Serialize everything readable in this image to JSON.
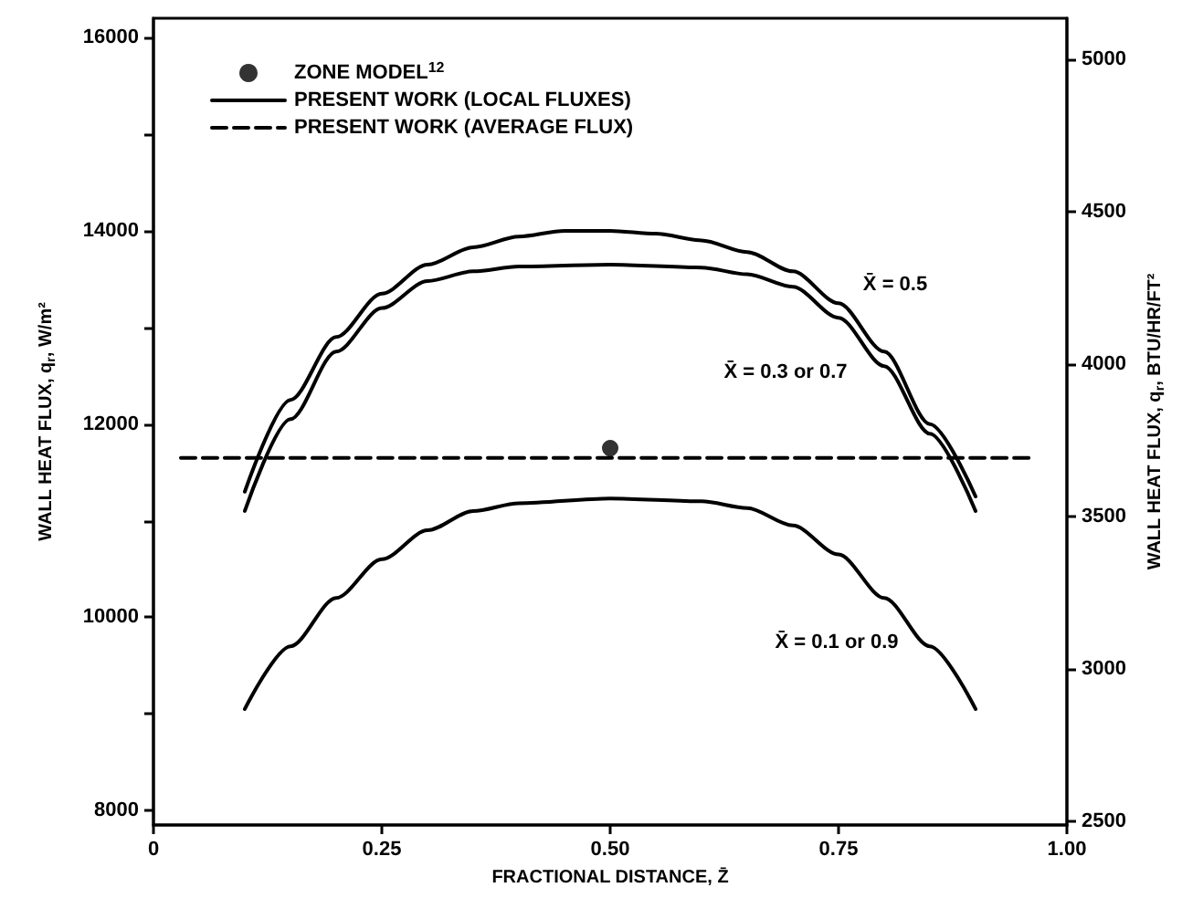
{
  "chart_data": {
    "type": "line",
    "xlabel": "FRACTIONAL DISTANCE, Z̄",
    "ylabel": "WALL HEAT FLUX, q$_{r}$, W/m²",
    "y2label": "WALL HEAT FLUX, q$_{r}$, BTU/HR/FT²",
    "xlim": [
      0,
      1
    ],
    "xticks": [
      0,
      {
        "value": 0.25,
        "label": "0.25"
      },
      {
        "value": 0.5,
        "label": "0.50"
      },
      {
        "value": 0.75,
        "label": "0.75"
      },
      {
        "value": 1,
        "label": "1.00"
      }
    ],
    "ylim": [
      7850,
      16200
    ],
    "yticks": [
      8000,
      {
        "value": 9000,
        "label": null
      },
      10000,
      {
        "value": 11000,
        "label": null
      },
      12000,
      {
        "value": 13000,
        "label": null
      },
      14000,
      {
        "value": 15000,
        "label": null
      },
      16000
    ],
    "y2lim": [
      2488,
      5135
    ],
    "y2ticks": [
      2500,
      3000,
      3500,
      4000,
      4500,
      5000
    ],
    "legend": "top left",
    "grid": false,
    "marker": "none",
    "line_style": "solid",
    "series": [
      {
        "name": "ZONE MODEL$^{12}$",
        "type": "scatter",
        "marker": "circle",
        "color": "#000000",
        "x": [
          0.5
        ],
        "values": [
          11750
        ]
      },
      {
        "name": "PRESENT WORK (LOCAL FLUXES)",
        "color": "#000000",
        "x": [
          0.1,
          0.15,
          0.2,
          0.25,
          0.3,
          0.35,
          0.4,
          0.45,
          0.5,
          0.55,
          0.6,
          0.65,
          0.7,
          0.75,
          0.8,
          0.85,
          0.9
        ],
        "values": [
          11300,
          12250,
          12900,
          13350,
          13650,
          13830,
          13940,
          14000,
          14000,
          13970,
          13900,
          13780,
          13580,
          13250,
          12750,
          12000,
          11250
        ]
      },
      {
        "color": "#000000",
        "x": [
          0.1,
          0.15,
          0.2,
          0.25,
          0.3,
          0.35,
          0.4,
          0.5,
          0.6,
          0.65,
          0.7,
          0.75,
          0.8,
          0.85,
          0.9
        ],
        "values": [
          11100,
          12050,
          12750,
          13200,
          13480,
          13580,
          13630,
          13650,
          13620,
          13550,
          13420,
          13100,
          12600,
          11900,
          11100
        ]
      },
      {
        "color": "#000000",
        "x": [
          0.1,
          0.15,
          0.2,
          0.25,
          0.3,
          0.35,
          0.4,
          0.5,
          0.6,
          0.65,
          0.7,
          0.75,
          0.8,
          0.85,
          0.9
        ],
        "values": [
          9050,
          9700,
          10200,
          10600,
          10900,
          11100,
          11180,
          11230,
          11200,
          11130,
          10950,
          10650,
          10200,
          9700,
          9050
        ]
      },
      {
        "name": "PRESENT WORK (AVERAGE FLUX)",
        "color": "#000000",
        "line_style": "dashed",
        "x": [
          0.03,
          0.96
        ],
        "values": [
          11650,
          11650
        ]
      }
    ],
    "annotations": [
      "X̄ = 0.5",
      "X̄ = 0.3 or 0.7",
      "X̄ = 0.1 or 0.9"
    ]
  }
}
